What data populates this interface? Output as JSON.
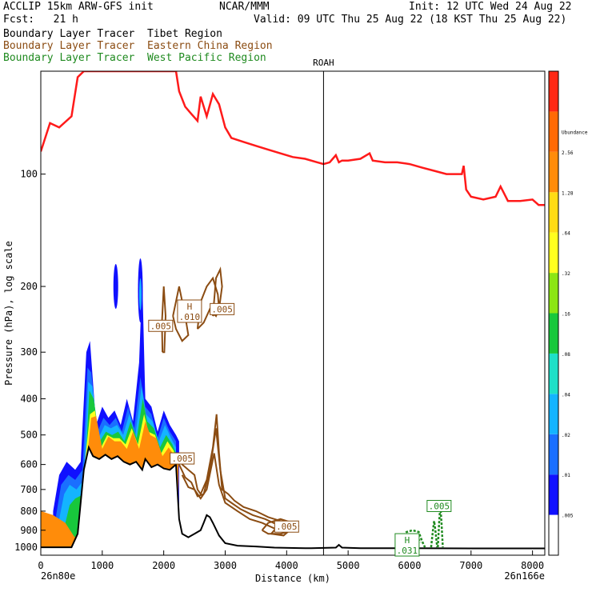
{
  "header": {
    "title": "ACCLIP 15km ARW-GFS init",
    "org": "NCAR/MMM",
    "init": "Init: 12 UTC Wed 24 Aug 22",
    "fcst": "Fcst:   21 h",
    "valid": "Valid: 09 UTC Thu 25 Aug 22 (18 KST Thu 25 Aug 22)",
    "legend": [
      {
        "label": "Boundary Layer Tracer  Tibet Region",
        "color": "#000000"
      },
      {
        "label": "Boundary Layer Tracer  Eastern China Region",
        "color": "#8b4c12"
      },
      {
        "label": "Boundary Layer Tracer  West Pacific Region",
        "color": "#1f8a1f"
      }
    ]
  },
  "chart_data": {
    "type": "cross-section",
    "xlabel": "Distance (km)",
    "ylabel": "Pressure (hPa), log scale",
    "xlim": [
      0,
      8200
    ],
    "ylim_hpa": [
      1050,
      53
    ],
    "y_scale": "log",
    "x_ticks": [
      0,
      1000,
      2000,
      3000,
      4000,
      5000,
      6000,
      7000,
      8000
    ],
    "y_ticks": [
      100,
      200,
      300,
      400,
      500,
      600,
      700,
      800,
      900,
      1000
    ],
    "x_end_labels": [
      "26n80e",
      "26n166e"
    ],
    "station": {
      "label": "ROAH",
      "x": 4600
    },
    "tropopause_color": "#ff1a1a",
    "tropopause": [
      [
        0,
        87
      ],
      [
        150,
        73
      ],
      [
        300,
        75
      ],
      [
        500,
        70
      ],
      [
        600,
        55
      ],
      [
        700,
        53
      ],
      [
        1200,
        53
      ],
      [
        1500,
        53
      ],
      [
        2200,
        53
      ],
      [
        2250,
        60
      ],
      [
        2350,
        66
      ],
      [
        2450,
        69
      ],
      [
        2550,
        72
      ],
      [
        2600,
        62
      ],
      [
        2700,
        70
      ],
      [
        2800,
        61
      ],
      [
        2900,
        65
      ],
      [
        3000,
        75
      ],
      [
        3100,
        80
      ],
      [
        3300,
        82
      ],
      [
        3500,
        84
      ],
      [
        3700,
        86
      ],
      [
        3900,
        88
      ],
      [
        4100,
        90
      ],
      [
        4300,
        91
      ],
      [
        4500,
        93
      ],
      [
        4600,
        94
      ],
      [
        4700,
        93
      ],
      [
        4750,
        91
      ],
      [
        4800,
        89
      ],
      [
        4850,
        93
      ],
      [
        4900,
        92
      ],
      [
        5000,
        92
      ],
      [
        5200,
        91
      ],
      [
        5350,
        88
      ],
      [
        5400,
        92
      ],
      [
        5600,
        93
      ],
      [
        5800,
        93
      ],
      [
        6000,
        94
      ],
      [
        6200,
        96
      ],
      [
        6400,
        98
      ],
      [
        6600,
        100
      ],
      [
        6800,
        100
      ],
      [
        6850,
        100
      ],
      [
        6880,
        95
      ],
      [
        6920,
        110
      ],
      [
        7000,
        115
      ],
      [
        7200,
        117
      ],
      [
        7400,
        115
      ],
      [
        7480,
        108
      ],
      [
        7530,
        112
      ],
      [
        7600,
        118
      ],
      [
        7800,
        118
      ],
      [
        8000,
        117
      ],
      [
        8100,
        121
      ],
      [
        8200,
        121
      ]
    ],
    "terrain": [
      [
        0,
        1000
      ],
      [
        500,
        1000
      ],
      [
        600,
        920
      ],
      [
        700,
        620
      ],
      [
        780,
        540
      ],
      [
        850,
        570
      ],
      [
        950,
        580
      ],
      [
        1050,
        565
      ],
      [
        1150,
        580
      ],
      [
        1250,
        570
      ],
      [
        1350,
        590
      ],
      [
        1450,
        600
      ],
      [
        1550,
        590
      ],
      [
        1650,
        620
      ],
      [
        1700,
        580
      ],
      [
        1800,
        610
      ],
      [
        1900,
        600
      ],
      [
        2000,
        615
      ],
      [
        2100,
        620
      ],
      [
        2200,
        600
      ],
      [
        2250,
        840
      ],
      [
        2300,
        920
      ],
      [
        2400,
        940
      ],
      [
        2500,
        920
      ],
      [
        2600,
        900
      ],
      [
        2650,
        860
      ],
      [
        2700,
        820
      ],
      [
        2750,
        830
      ],
      [
        2800,
        860
      ],
      [
        2900,
        930
      ],
      [
        3000,
        975
      ],
      [
        3200,
        990
      ],
      [
        3500,
        995
      ],
      [
        3800,
        1002
      ],
      [
        4200,
        1005
      ],
      [
        4400,
        1006
      ],
      [
        4800,
        1002
      ],
      [
        4850,
        985
      ],
      [
        4900,
        1002
      ],
      [
        5200,
        1006
      ],
      [
        6000,
        1006
      ],
      [
        7000,
        1007
      ],
      [
        8200,
        1007
      ]
    ],
    "colorbar": {
      "colors": [
        "#ffffff",
        "#1010ff",
        "#1a6fff",
        "#14b4ff",
        "#1ee0c8",
        "#18c83c",
        "#8ce614",
        "#ffff1e",
        "#ffdc14",
        "#ff8c0a",
        "#ff6a05",
        "#ff2814"
      ],
      "labels": [
        ".005",
        ".01",
        ".02",
        ".04",
        ".08",
        ".16",
        ".32",
        ".64",
        "1.28",
        "2.56",
        "Ubundance"
      ]
    },
    "contour_labels": [
      {
        "text": ".005",
        "x": 1950,
        "p": 255,
        "type": "E"
      },
      {
        "text": ".010",
        "x": 2420,
        "p": 233,
        "type": "E",
        "h": "H"
      },
      {
        "text": ".005",
        "x": 2950,
        "p": 230,
        "type": "E"
      },
      {
        "text": ".005",
        "x": 2300,
        "p": 578,
        "type": "E"
      },
      {
        "text": ".005",
        "x": 4000,
        "p": 880,
        "type": "E"
      },
      {
        "text": ".031",
        "x": 5960,
        "p": 985,
        "type": "W",
        "h": "H"
      },
      {
        "text": ".005",
        "x": 6480,
        "p": 775,
        "type": "W"
      }
    ]
  }
}
